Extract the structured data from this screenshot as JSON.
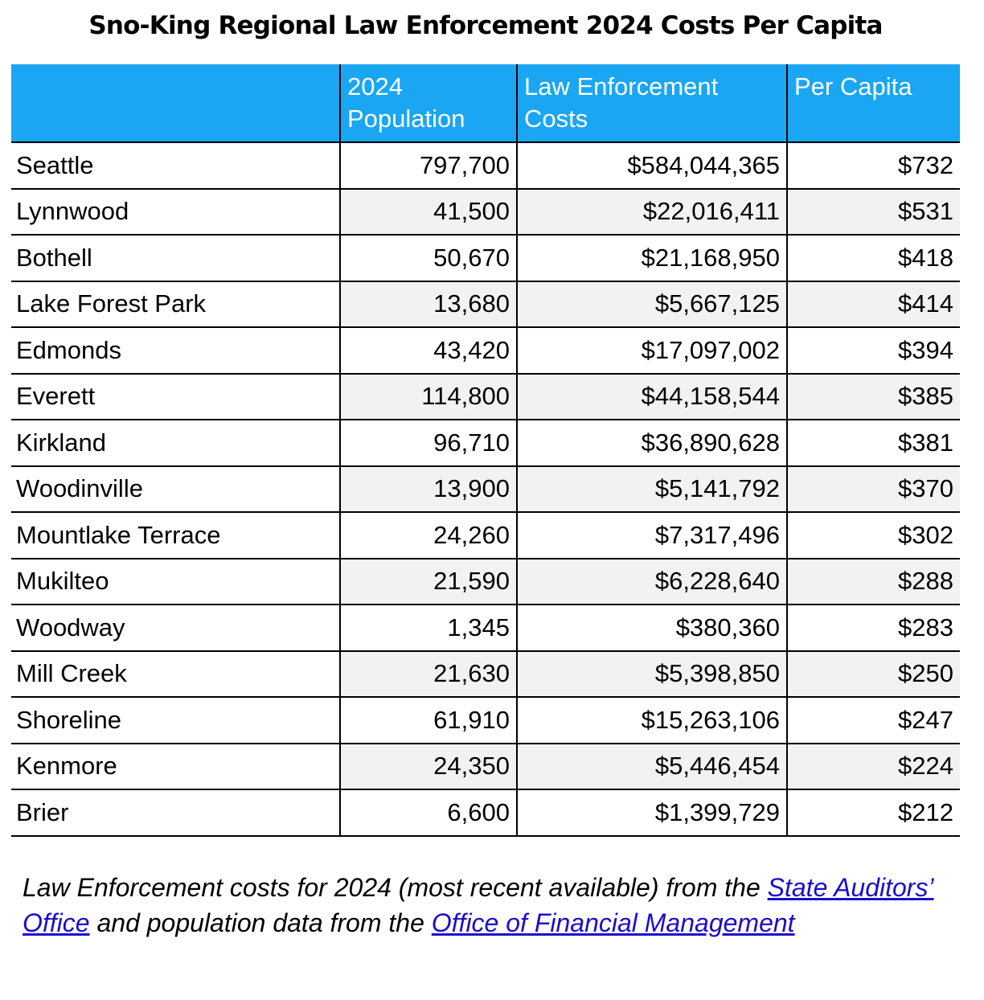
{
  "title": "Sno-King Regional Law Enforcement 2024 Costs Per Capita",
  "table": {
    "headers": {
      "name": "",
      "population_line1": "2024",
      "population_line2": "Population",
      "costs_line1": "Law Enforcement",
      "costs_line2": "Costs",
      "per_capita": "Per Capita"
    },
    "header_color": "#1aa6f2",
    "rows": [
      {
        "city": "Seattle",
        "population": "797,700",
        "costs": "$584,044,365",
        "per_capita": "$732"
      },
      {
        "city": "Lynnwood",
        "population": "41,500",
        "costs": "$22,016,411",
        "per_capita": "$531"
      },
      {
        "city": "Bothell",
        "population": "50,670",
        "costs": "$21,168,950",
        "per_capita": "$418"
      },
      {
        "city": "Lake Forest Park",
        "population": "13,680",
        "costs": "$5,667,125",
        "per_capita": "$414"
      },
      {
        "city": "Edmonds",
        "population": "43,420",
        "costs": "$17,097,002",
        "per_capita": "$394"
      },
      {
        "city": "Everett",
        "population": "114,800",
        "costs": "$44,158,544",
        "per_capita": "$385"
      },
      {
        "city": "Kirkland",
        "population": "96,710",
        "costs": "$36,890,628",
        "per_capita": "$381"
      },
      {
        "city": "Woodinville",
        "population": "13,900",
        "costs": "$5,141,792",
        "per_capita": "$370"
      },
      {
        "city": "Mountlake Terrace",
        "population": "24,260",
        "costs": "$7,317,496",
        "per_capita": "$302"
      },
      {
        "city": "Mukilteo",
        "population": "21,590",
        "costs": "$6,228,640",
        "per_capita": "$288"
      },
      {
        "city": "Woodway",
        "population": "1,345",
        "costs": "$380,360",
        "per_capita": "$283"
      },
      {
        "city": "Mill Creek",
        "population": "21,630",
        "costs": "$5,398,850",
        "per_capita": "$250"
      },
      {
        "city": "Shoreline",
        "population": "61,910",
        "costs": "$15,263,106",
        "per_capita": "$247"
      },
      {
        "city": "Kenmore",
        "population": "24,350",
        "costs": "$5,446,454",
        "per_capita": "$224"
      },
      {
        "city": "Brier",
        "population": "6,600",
        "costs": "$1,399,729",
        "per_capita": "$212"
      }
    ]
  },
  "footnote": {
    "text1": "Law Enforcement costs for 2024 (most recent available) from the ",
    "link1": "State Auditors’ Office",
    "text2": " and population data from the ",
    "link2": "Office of Financial Management"
  }
}
